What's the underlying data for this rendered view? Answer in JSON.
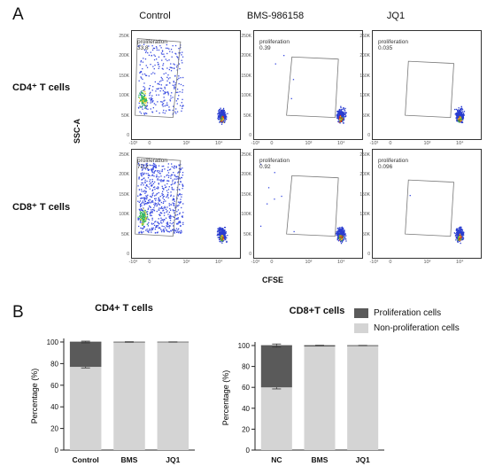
{
  "panel_a": {
    "letter": "A",
    "columns": [
      "Control",
      "BMS-986158",
      "JQ1"
    ],
    "rows": [
      "CD4⁺ T cells",
      "CD8⁺ T cells"
    ],
    "y_axis_label": "SSC-A",
    "x_axis_label": "CFSE",
    "y_ticks": [
      "250K",
      "200K",
      "150K",
      "100K",
      "50K",
      "0"
    ],
    "x_ticks": [
      "-10³",
      "0",
      "10³",
      "10⁴"
    ],
    "gate_name": "proliferation",
    "gates": [
      [
        "33.8",
        "0.39",
        "0.035"
      ],
      [
        "72.2",
        "0.92",
        "0.096"
      ]
    ]
  },
  "panel_b": {
    "letter": "B",
    "legend": {
      "proliferation": "Proliferation cells",
      "non_proliferation": "Non-proliferation cells"
    },
    "colors": {
      "proliferation": "#5a5a5a",
      "non_proliferation": "#d4d4d4",
      "axis": "#222222"
    }
  },
  "chart_data": [
    {
      "type": "bar",
      "stacked": true,
      "title": "CD4+ T cells",
      "ylabel": "Percentage (%)",
      "xlabel": "",
      "categories": [
        "Control",
        "BMS",
        "JQ1"
      ],
      "ylim": [
        0,
        100
      ],
      "yticks": [
        0,
        20,
        40,
        60,
        80,
        100
      ],
      "series": [
        {
          "name": "Non-proliferation cells",
          "values": [
            77,
            99.6,
            99.9
          ],
          "errors": [
            1.0,
            0,
            0
          ]
        },
        {
          "name": "Proliferation cells",
          "values": [
            23,
            0.4,
            0.1
          ],
          "errors": [
            0.8,
            0.3,
            0.2
          ]
        }
      ]
    },
    {
      "type": "bar",
      "stacked": true,
      "title": "CD8+T cells",
      "ylabel": "Percentage (%)",
      "xlabel": "",
      "categories": [
        "NC",
        "BMS",
        "JQ1"
      ],
      "ylim": [
        0,
        100
      ],
      "yticks": [
        0,
        20,
        40,
        60,
        80,
        100
      ],
      "series": [
        {
          "name": "Non-proliferation cells",
          "values": [
            60,
            99.1,
            99.5
          ],
          "errors": [
            1.5,
            0,
            0
          ]
        },
        {
          "name": "Proliferation cells",
          "values": [
            40,
            0.9,
            0.5
          ],
          "errors": [
            1.5,
            0.3,
            0.2
          ]
        }
      ]
    }
  ]
}
